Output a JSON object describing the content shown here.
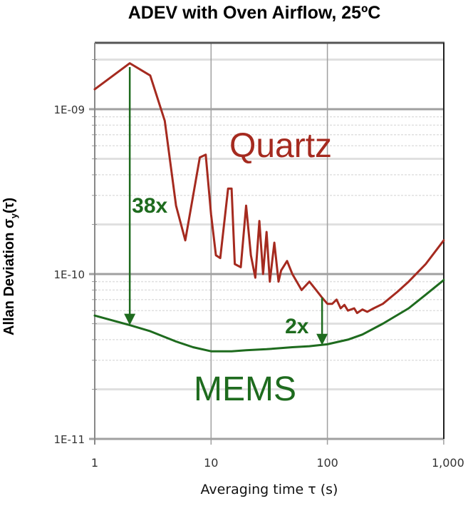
{
  "chart_data": {
    "type": "line",
    "title": "ADEV with Oven Airflow, 25ºC",
    "xlabel": "Averaging time τ (s)",
    "ylabel": "Allan Deviation σy(τ)",
    "xscale": "log",
    "yscale": "log",
    "xlim": [
      1,
      1000
    ],
    "ylim": [
      1e-11,
      3e-09
    ],
    "x_ticks": [
      "1",
      "10",
      "100",
      "1,000"
    ],
    "y_ticks": [
      "1E-09",
      "1E-10",
      "1E-11"
    ],
    "grid": true,
    "legend": "none (inline labels)",
    "colors": {
      "quartz": "#a52a1f",
      "mems": "#1e6b1e",
      "grid_major": "#a0a0a0",
      "grid_minor": "#e0e0e0"
    },
    "series": [
      {
        "name": "Quartz",
        "color": "#a52a1f",
        "x": [
          1,
          2,
          3,
          4,
          5,
          6,
          8,
          9,
          10,
          11,
          12,
          14,
          15,
          16,
          18,
          20,
          22,
          24,
          26,
          28,
          30,
          32,
          35,
          38,
          40,
          45,
          50,
          60,
          70,
          80,
          90,
          100,
          110,
          120,
          130,
          140,
          150,
          170,
          180,
          200,
          220,
          250,
          300,
          400,
          500,
          700,
          1000
        ],
        "y": [
          1.32e-09,
          1.9e-09,
          1.6e-09,
          8.5e-10,
          2.6e-10,
          1.6e-10,
          5.1e-10,
          5.3e-10,
          2.3e-10,
          1.3e-10,
          1.25e-10,
          3.3e-10,
          3.3e-10,
          1.15e-10,
          1.1e-10,
          2.6e-10,
          1.3e-10,
          9.5e-11,
          2.1e-10,
          1e-10,
          1.8e-10,
          9e-11,
          1.55e-10,
          9e-11,
          1.05e-10,
          1.2e-10,
          1e-10,
          8e-11,
          9e-11,
          8e-11,
          7.2e-11,
          6.6e-11,
          6.6e-11,
          7e-11,
          6.2e-11,
          6.5e-11,
          6e-11,
          6.2e-11,
          5.8e-11,
          6.1e-11,
          5.9e-11,
          6.2e-11,
          6.6e-11,
          7.8e-11,
          9e-11,
          1.15e-10,
          1.6e-10
        ]
      },
      {
        "name": "MEMS",
        "color": "#1e6b1e",
        "x": [
          1,
          2,
          3,
          5,
          7,
          10,
          15,
          20,
          30,
          50,
          70,
          100,
          150,
          200,
          300,
          500,
          700,
          1000
        ],
        "y": [
          5.6e-11,
          4.9e-11,
          4.5e-11,
          3.9e-11,
          3.6e-11,
          3.4e-11,
          3.4e-11,
          3.45e-11,
          3.5e-11,
          3.6e-11,
          3.65e-11,
          3.75e-11,
          4e-11,
          4.3e-11,
          5e-11,
          6.2e-11,
          7.5e-11,
          9.2e-11
        ]
      }
    ],
    "annotations": [
      {
        "text": "Quartz",
        "color": "#a52a1f",
        "x": 20,
        "y": 6.5e-10
      },
      {
        "text": "MEMS",
        "color": "#1e6b1e",
        "x": 20,
        "y": 2.2e-11
      },
      {
        "text": "38x",
        "color": "#1e6b1e",
        "arrow_from": [
          2,
          1.8e-09
        ],
        "arrow_to": [
          2,
          4.9e-11
        ]
      },
      {
        "text": "2x",
        "color": "#1e6b1e",
        "arrow_from": [
          90,
          7.2e-11
        ],
        "arrow_to": [
          90,
          3.7e-11
        ]
      }
    ]
  }
}
